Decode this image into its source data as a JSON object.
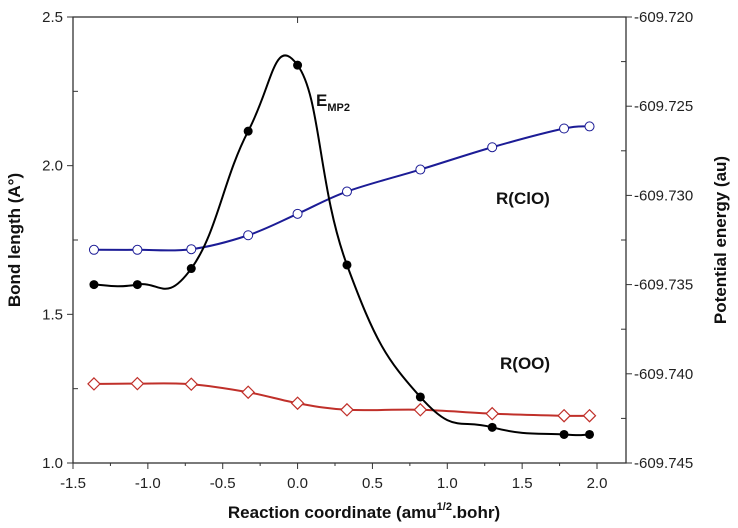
{
  "chart_data": {
    "type": "line",
    "xlabel": "Reaction coordinate (amu",
    "xlabel_sup": "1/2",
    "xlabel_tail": ".bohr)",
    "ylabel_left": "Bond length (A°)",
    "ylabel_right": "Potential energy (au)",
    "xlim": [
      -1.5,
      2.0
    ],
    "ylim_left": [
      1.0,
      2.5
    ],
    "ylim_right": [
      -609.745,
      -609.72
    ],
    "x_ticks": [
      "-1.5",
      "-1.0",
      "-0.5",
      "0.0",
      "0.5",
      "1.0",
      "1.5",
      "2.0"
    ],
    "y_left_ticks": [
      "1.0",
      "1.5",
      "2.0",
      "2.5"
    ],
    "y_right_ticks": [
      "-609.745",
      "-609.740",
      "-609.735",
      "-609.730",
      "-609.725",
      "-609.720"
    ],
    "grid": false,
    "x": [
      -1.36,
      -1.07,
      -0.71,
      -0.33,
      0.0,
      0.33,
      0.82,
      1.3,
      1.78,
      1.95
    ],
    "series": [
      {
        "name": "R(ClO)",
        "label": "R(ClO)",
        "axis": "left",
        "color": "#1c1c96",
        "marker": "open-circle",
        "values": [
          1.717,
          1.717,
          1.719,
          1.766,
          1.838,
          1.913,
          1.987,
          2.062,
          2.125,
          2.132
        ]
      },
      {
        "name": "R(OO)",
        "label": "R(OO)",
        "axis": "left",
        "color": "#c0302a",
        "marker": "open-diamond",
        "values": [
          1.266,
          1.267,
          1.265,
          1.238,
          1.201,
          1.179,
          1.179,
          1.166,
          1.159,
          1.159
        ]
      },
      {
        "name": "EMP2",
        "label": "E",
        "label_sub": "MP2",
        "axis": "right",
        "color": "#000000",
        "marker": "filled-circle",
        "values": [
          -609.735,
          -609.735,
          -609.7341,
          -609.7264,
          -609.7227,
          -609.7339,
          -609.7413,
          -609.743,
          -609.7434,
          -609.7434
        ]
      }
    ]
  }
}
